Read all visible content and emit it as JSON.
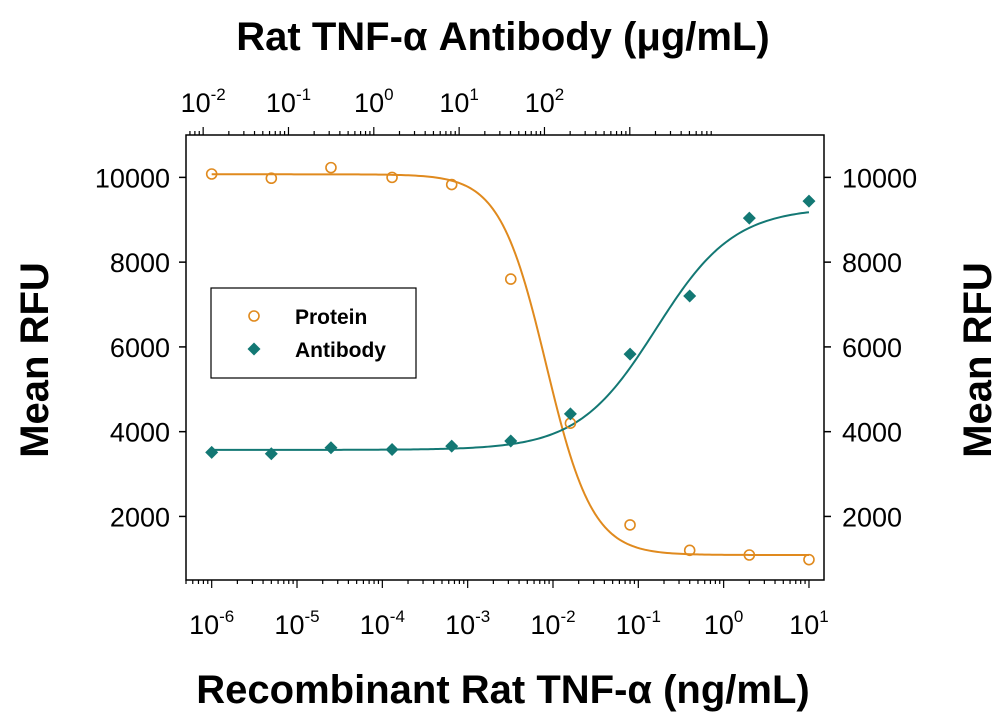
{
  "chart_data": {
    "type": "scatter",
    "title": "Rat TNF-α Antibody (μg/mL)",
    "xlabel": "Recombinant Rat TNF-α (ng/mL)",
    "ylabel": "Mean RFU",
    "ylabel_right": "Mean RFU",
    "x_scale": "log",
    "xlim": [
      5e-07,
      15
    ],
    "ylim": [
      500,
      11000
    ],
    "yticks": [
      "2000",
      "4000",
      "6000",
      "8000",
      "10000"
    ],
    "xticks_bottom": [
      {
        "base": "10",
        "exp": "-6"
      },
      {
        "base": "10",
        "exp": "-5"
      },
      {
        "base": "10",
        "exp": "-4"
      },
      {
        "base": "10",
        "exp": "-3"
      },
      {
        "base": "10",
        "exp": "-2"
      },
      {
        "base": "10",
        "exp": "-1"
      },
      {
        "base": "10",
        "exp": "0"
      },
      {
        "base": "10",
        "exp": "1"
      }
    ],
    "xticks_top": [
      {
        "base": "10",
        "exp": "-2"
      },
      {
        "base": "10",
        "exp": "-1"
      },
      {
        "base": "10",
        "exp": "0"
      },
      {
        "base": "10",
        "exp": "1"
      },
      {
        "base": "10",
        "exp": "2"
      }
    ],
    "legend": "left",
    "grid": false,
    "series": [
      {
        "name": "Protein",
        "marker": "open-circle",
        "color": "#e08a1e",
        "x": [
          1e-06,
          5e-06,
          2.5e-05,
          0.00013,
          0.00065,
          0.0032,
          0.016,
          0.08,
          0.4,
          2,
          10
        ],
        "y": [
          10080,
          9980,
          10230,
          10000,
          9830,
          7600,
          4200,
          1800,
          1200,
          1090,
          980
        ]
      },
      {
        "name": "Antibody",
        "marker": "filled-diamond",
        "color": "#137874",
        "x": [
          1e-06,
          5e-06,
          2.5e-05,
          0.00013,
          0.00065,
          0.0032,
          0.016,
          0.08,
          0.4,
          2,
          10
        ],
        "y": [
          3510,
          3480,
          3620,
          3580,
          3660,
          3780,
          4420,
          5830,
          7200,
          9040,
          9440
        ]
      }
    ]
  }
}
